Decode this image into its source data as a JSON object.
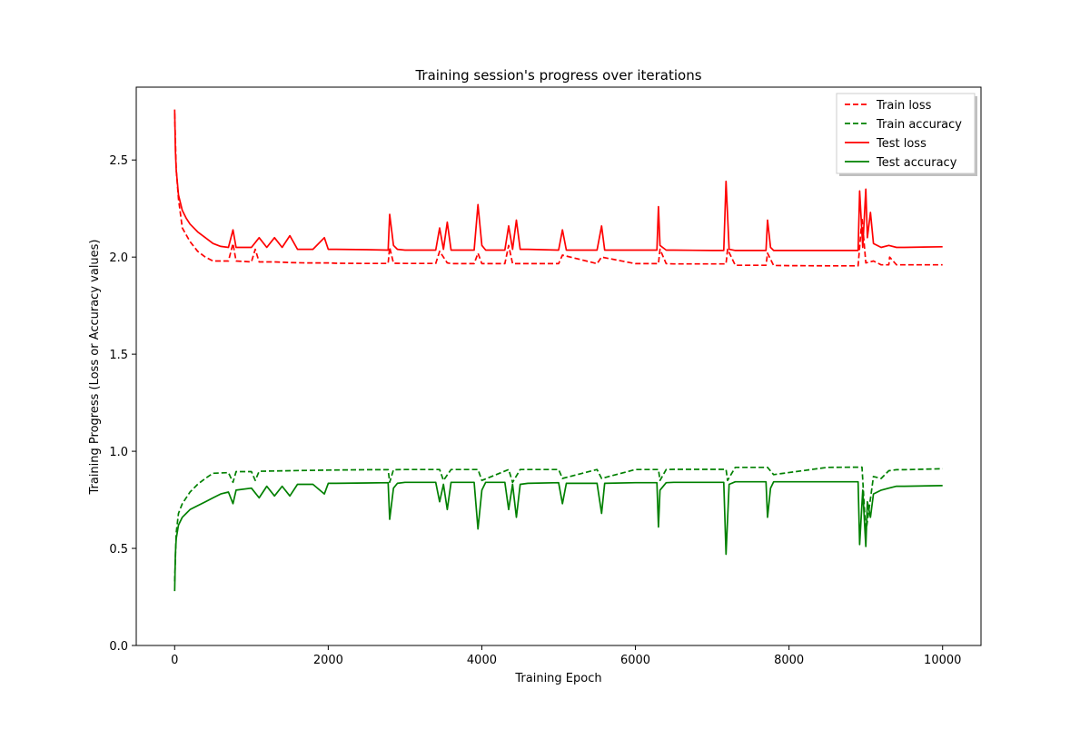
{
  "chart_data": {
    "type": "line",
    "title": "Training session's progress over iterations",
    "xlabel": "Training Epoch",
    "ylabel": "Training Progress (Loss or Accuracy values)",
    "xlim": [
      -500,
      10500
    ],
    "ylim": [
      0.0,
      2.875
    ],
    "x_ticks": [
      0,
      2000,
      4000,
      6000,
      8000,
      10000
    ],
    "x_tick_labels": [
      "0",
      "2000",
      "4000",
      "6000",
      "8000",
      "10000"
    ],
    "y_ticks": [
      0.0,
      0.5,
      1.0,
      1.5,
      2.0,
      2.5
    ],
    "y_tick_labels": [
      "0.0",
      "0.5",
      "1.0",
      "1.5",
      "2.0",
      "2.5"
    ],
    "grid": false,
    "legend_position": "top-right",
    "series": [
      {
        "name": "Train loss",
        "color": "#ff0000",
        "dash": "dashed",
        "x": [
          0,
          20,
          50,
          100,
          200,
          300,
          400,
          500,
          700,
          760,
          800,
          1000,
          1050,
          1100,
          1300,
          1500,
          1700,
          1900,
          2000,
          2100,
          2500,
          2780,
          2800,
          2850,
          3000,
          3400,
          3450,
          3550,
          3600,
          3900,
          3950,
          4000,
          4300,
          4350,
          4400,
          4500,
          5000,
          5050,
          5500,
          5560,
          6000,
          6300,
          6320,
          6400,
          6500,
          7000,
          7180,
          7200,
          7300,
          7700,
          7720,
          7800,
          8000,
          8500,
          8900,
          8950,
          9000,
          9100,
          9200,
          9300,
          9310,
          9400,
          9500,
          10000
        ],
        "y": [
          2.74,
          2.45,
          2.3,
          2.15,
          2.08,
          2.03,
          2.0,
          1.98,
          1.98,
          2.07,
          1.98,
          1.975,
          2.04,
          1.975,
          1.975,
          1.972,
          1.97,
          1.97,
          1.97,
          1.968,
          1.967,
          1.967,
          2.05,
          1.968,
          1.967,
          1.967,
          2.03,
          1.97,
          1.966,
          1.966,
          2.02,
          1.966,
          1.966,
          2.06,
          1.966,
          1.966,
          1.966,
          2.01,
          1.966,
          2.0,
          1.966,
          1.966,
          2.04,
          1.966,
          1.965,
          1.965,
          1.965,
          2.04,
          1.958,
          1.958,
          2.02,
          1.957,
          1.956,
          1.955,
          1.955,
          2.2,
          1.97,
          1.98,
          1.96,
          1.96,
          2.0,
          1.96,
          1.96,
          1.96
        ]
      },
      {
        "name": "Train accuracy",
        "color": "#008000",
        "dash": "dashed",
        "x": [
          0,
          20,
          50,
          100,
          200,
          300,
          400,
          500,
          700,
          760,
          800,
          1000,
          1050,
          1100,
          1500,
          2000,
          2500,
          2780,
          2800,
          2850,
          3000,
          3450,
          3500,
          3600,
          3950,
          4000,
          4350,
          4400,
          4500,
          5000,
          5050,
          5500,
          5560,
          6000,
          6300,
          6320,
          6400,
          6500,
          7000,
          7180,
          7200,
          7300,
          7720,
          7800,
          8500,
          8900,
          8950,
          9000,
          9100,
          9200,
          9300,
          9400,
          9500,
          10000
        ],
        "y": [
          0.33,
          0.58,
          0.68,
          0.73,
          0.79,
          0.83,
          0.86,
          0.887,
          0.89,
          0.84,
          0.895,
          0.895,
          0.85,
          0.897,
          0.9,
          0.903,
          0.905,
          0.905,
          0.84,
          0.905,
          0.906,
          0.906,
          0.85,
          0.906,
          0.906,
          0.85,
          0.906,
          0.84,
          0.906,
          0.906,
          0.86,
          0.906,
          0.86,
          0.906,
          0.906,
          0.85,
          0.906,
          0.907,
          0.907,
          0.907,
          0.85,
          0.917,
          0.917,
          0.88,
          0.917,
          0.918,
          0.918,
          0.58,
          0.87,
          0.86,
          0.9,
          0.905,
          0.905,
          0.91
        ]
      },
      {
        "name": "Test loss",
        "color": "#ff0000",
        "dash": "solid",
        "x": [
          0,
          10,
          20,
          50,
          100,
          150,
          200,
          300,
          400,
          500,
          600,
          700,
          760,
          800,
          1000,
          1100,
          1200,
          1300,
          1400,
          1500,
          1600,
          1800,
          1950,
          2000,
          2100,
          2500,
          2780,
          2800,
          2850,
          2900,
          3000,
          3400,
          3450,
          3500,
          3550,
          3600,
          3900,
          3950,
          4000,
          4050,
          4300,
          4350,
          4400,
          4450,
          4500,
          4600,
          5000,
          5050,
          5100,
          5500,
          5560,
          5600,
          6000,
          6280,
          6300,
          6320,
          6400,
          6500,
          7000,
          7150,
          7180,
          7220,
          7300,
          7700,
          7720,
          7760,
          7800,
          8000,
          8500,
          8900,
          8920,
          8960,
          9000,
          9020,
          9060,
          9100,
          9200,
          9300,
          9400,
          9500,
          10000
        ],
        "y": [
          2.76,
          2.55,
          2.45,
          2.32,
          2.24,
          2.2,
          2.17,
          2.13,
          2.1,
          2.07,
          2.055,
          2.05,
          2.14,
          2.05,
          2.05,
          2.1,
          2.05,
          2.1,
          2.05,
          2.11,
          2.04,
          2.04,
          2.1,
          2.04,
          2.04,
          2.038,
          2.036,
          2.22,
          2.06,
          2.04,
          2.036,
          2.036,
          2.15,
          2.04,
          2.18,
          2.036,
          2.036,
          2.27,
          2.06,
          2.036,
          2.036,
          2.16,
          2.04,
          2.19,
          2.04,
          2.04,
          2.036,
          2.14,
          2.036,
          2.036,
          2.16,
          2.036,
          2.036,
          2.036,
          2.26,
          2.06,
          2.036,
          2.036,
          2.034,
          2.034,
          2.39,
          2.04,
          2.034,
          2.034,
          2.19,
          2.05,
          2.034,
          2.034,
          2.034,
          2.034,
          2.34,
          2.05,
          2.35,
          2.1,
          2.23,
          2.07,
          2.05,
          2.06,
          2.05,
          2.05,
          2.053
        ]
      },
      {
        "name": "Test accuracy",
        "color": "#008000",
        "dash": "solid",
        "x": [
          0,
          10,
          20,
          50,
          100,
          150,
          200,
          300,
          400,
          500,
          600,
          700,
          760,
          800,
          1000,
          1100,
          1200,
          1300,
          1400,
          1500,
          1600,
          1800,
          1950,
          2000,
          2100,
          2500,
          2780,
          2800,
          2850,
          2900,
          3000,
          3400,
          3450,
          3500,
          3550,
          3600,
          3900,
          3950,
          4000,
          4050,
          4300,
          4350,
          4400,
          4450,
          4500,
          4600,
          5000,
          5050,
          5100,
          5500,
          5560,
          5600,
          6000,
          6280,
          6300,
          6320,
          6400,
          6500,
          7000,
          7150,
          7180,
          7220,
          7300,
          7700,
          7720,
          7760,
          7800,
          8000,
          8500,
          8900,
          8920,
          8960,
          9000,
          9020,
          9060,
          9100,
          9200,
          9300,
          9400,
          9500,
          10000
        ],
        "y": [
          0.28,
          0.47,
          0.55,
          0.62,
          0.66,
          0.68,
          0.7,
          0.72,
          0.74,
          0.76,
          0.78,
          0.79,
          0.73,
          0.8,
          0.81,
          0.76,
          0.82,
          0.77,
          0.82,
          0.77,
          0.83,
          0.83,
          0.78,
          0.835,
          0.835,
          0.837,
          0.838,
          0.65,
          0.81,
          0.835,
          0.84,
          0.84,
          0.74,
          0.83,
          0.7,
          0.84,
          0.84,
          0.6,
          0.8,
          0.84,
          0.84,
          0.7,
          0.83,
          0.66,
          0.83,
          0.835,
          0.838,
          0.73,
          0.835,
          0.835,
          0.68,
          0.835,
          0.838,
          0.838,
          0.61,
          0.8,
          0.838,
          0.84,
          0.84,
          0.84,
          0.47,
          0.83,
          0.843,
          0.843,
          0.66,
          0.81,
          0.843,
          0.843,
          0.843,
          0.843,
          0.52,
          0.8,
          0.51,
          0.74,
          0.66,
          0.78,
          0.8,
          0.81,
          0.82,
          0.82,
          0.823
        ]
      }
    ]
  }
}
